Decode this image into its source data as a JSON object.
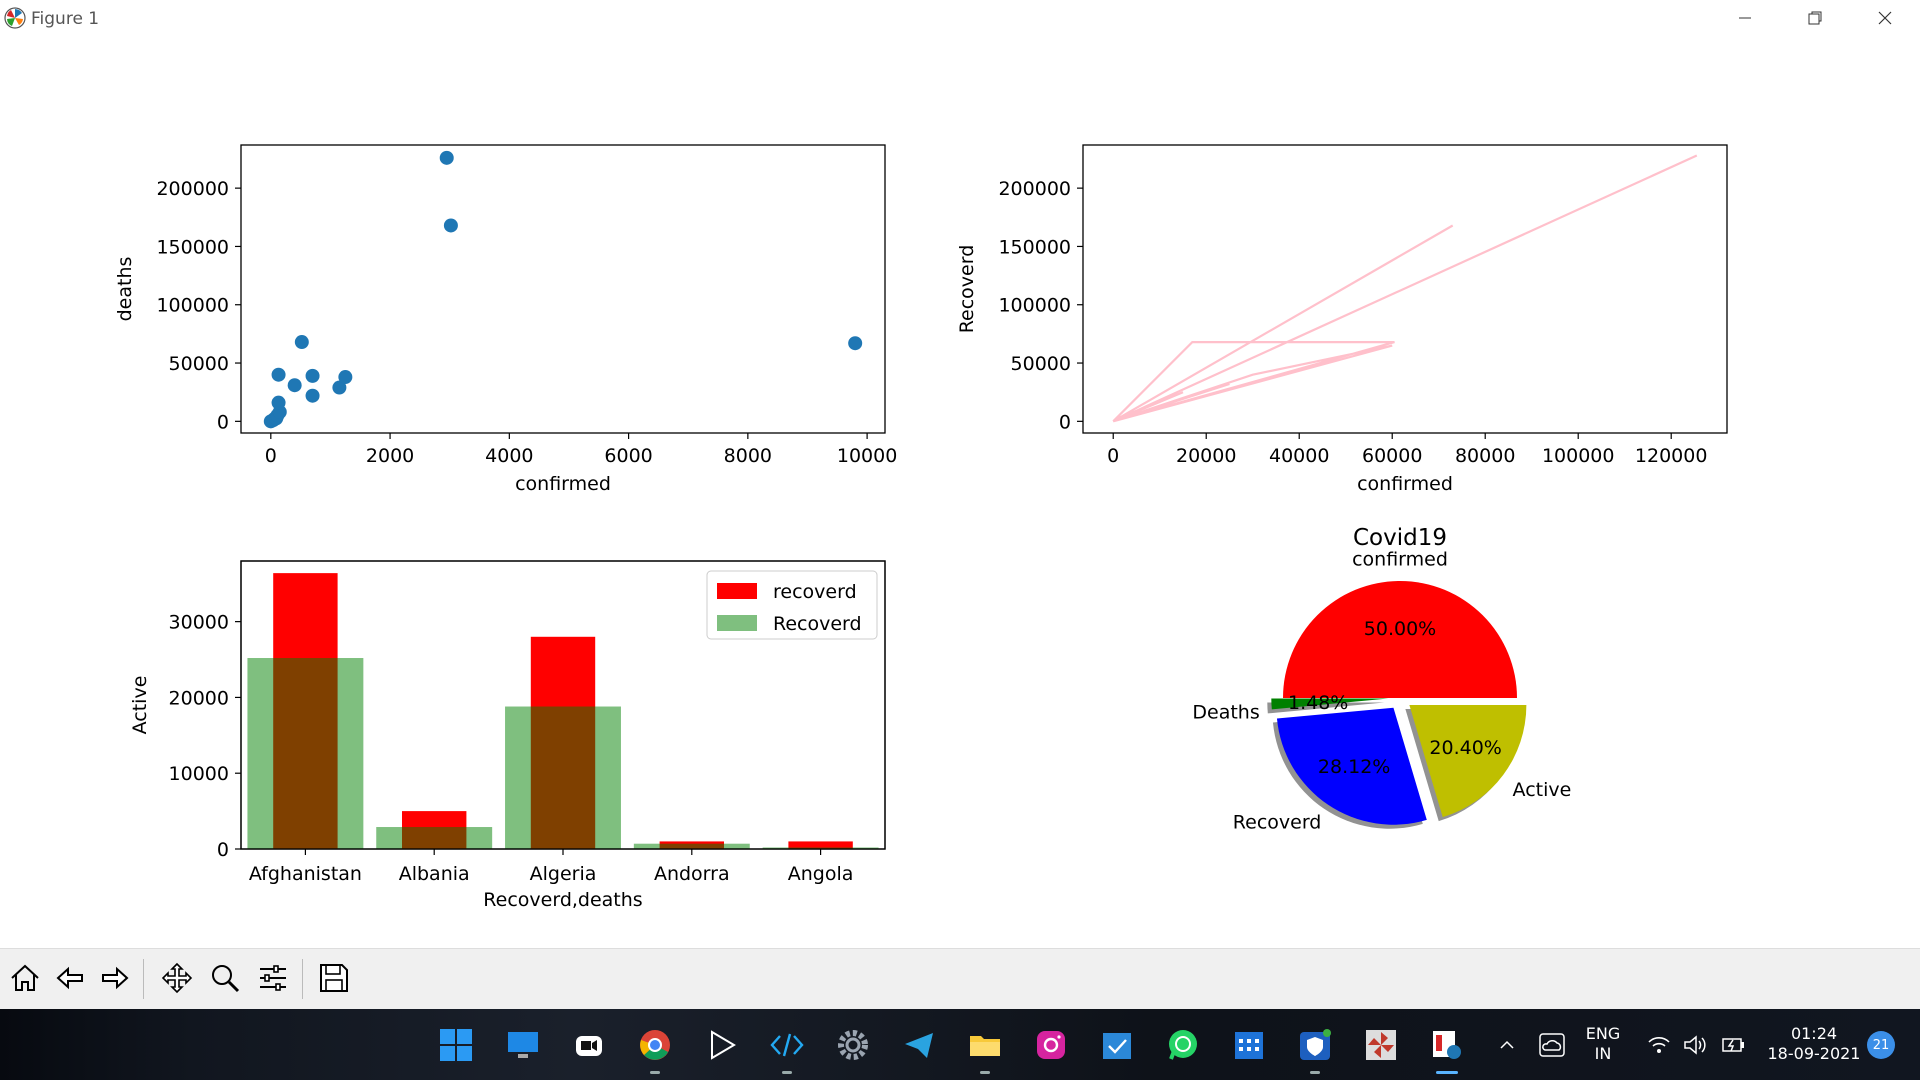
{
  "window": {
    "title": "Figure 1"
  },
  "chart_data": [
    {
      "type": "scatter",
      "xlabel": "confirmed",
      "ylabel": "deaths",
      "xticks": [
        "0",
        "2000",
        "4000",
        "6000",
        "8000",
        "10000"
      ],
      "yticks": [
        "0",
        "50000",
        "100000",
        "150000",
        "200000"
      ],
      "xlim": [
        -500,
        10300
      ],
      "ylim": [
        -10000,
        237000
      ],
      "color": "#1f77b4",
      "points": [
        [
          0,
          0
        ],
        [
          40,
          1000
        ],
        [
          60,
          2000
        ],
        [
          90,
          2500
        ],
        [
          110,
          5000
        ],
        [
          150,
          8000
        ],
        [
          130,
          16000
        ],
        [
          130,
          40000
        ],
        [
          400,
          31000
        ],
        [
          700,
          22000
        ],
        [
          700,
          39000
        ],
        [
          1150,
          29000
        ],
        [
          1250,
          38000
        ],
        [
          520,
          68000
        ],
        [
          2950,
          226000
        ],
        [
          3020,
          168000
        ],
        [
          9800,
          67000
        ]
      ]
    },
    {
      "type": "line",
      "xlabel": "confirmed",
      "ylabel": "Recoverd",
      "xticks": [
        "0",
        "20000",
        "40000",
        "60000",
        "80000",
        "100000",
        "120000"
      ],
      "yticks": [
        "0",
        "50000",
        "100000",
        "150000",
        "200000"
      ],
      "xlim": [
        -6500,
        132000
      ],
      "ylim": [
        -10000,
        237000
      ],
      "color": "pink",
      "points": [
        [
          0,
          0
        ],
        [
          17000,
          68000
        ],
        [
          60500,
          68000
        ],
        [
          0,
          0
        ],
        [
          73000,
          168000
        ],
        [
          0,
          0
        ],
        [
          25000,
          32000
        ],
        [
          0,
          0
        ],
        [
          125500,
          228000
        ],
        [
          0,
          0
        ],
        [
          15000,
          25000
        ],
        [
          0,
          0
        ],
        [
          60000,
          65000
        ],
        [
          30000,
          40000
        ],
        [
          0,
          0
        ]
      ]
    },
    {
      "type": "bar",
      "xlabel": "Recoverd,deaths",
      "ylabel": "Active",
      "categories": [
        "Afghanistan",
        "Albania",
        "Algeria",
        "Andorra",
        "Angola"
      ],
      "yticks": [
        "0",
        "10000",
        "20000",
        "30000"
      ],
      "ylim": [
        0,
        38000
      ],
      "legend": {
        "placement": "top-right"
      },
      "series": [
        {
          "name": "recoverd",
          "color": "#ff0000",
          "values": [
            36400,
            5000,
            28000,
            1000,
            1000
          ]
        },
        {
          "name": "Recoverd",
          "color": "#008000",
          "opacity": 0.5,
          "values": [
            25200,
            2900,
            18800,
            700,
            200
          ]
        }
      ]
    },
    {
      "type": "pie",
      "title": "Covid19",
      "slices": [
        {
          "label": "confirmed",
          "value": 50.0,
          "pct": "50.00%",
          "color": "#ff0000",
          "explode": 0.0
        },
        {
          "label": "Deaths",
          "value": 1.48,
          "pct": "1.48%",
          "color": "#008000",
          "explode": 0.1
        },
        {
          "label": "Recoverd",
          "value": 28.12,
          "pct": "28.12%",
          "color": "#0000ff",
          "explode": 0.1
        },
        {
          "label": "Active",
          "value": 20.4,
          "pct": "20.40%",
          "color": "#bfbf00",
          "explode": 0.1
        }
      ]
    }
  ],
  "toolbar": {
    "buttons": [
      {
        "name": "home-button",
        "icon": "home-icon"
      },
      {
        "name": "back-button",
        "icon": "arrow-left-icon"
      },
      {
        "name": "forward-button",
        "icon": "arrow-right-icon"
      },
      {
        "name": "pan-button",
        "icon": "move-icon"
      },
      {
        "name": "zoom-button",
        "icon": "magnifier-icon"
      },
      {
        "name": "configure-subplots-button",
        "icon": "sliders-icon"
      },
      {
        "name": "save-button",
        "icon": "floppy-disk-icon"
      }
    ]
  },
  "taskbar": {
    "language": "ENG",
    "region": "IN",
    "time": "01:24",
    "date": "18-09-2021",
    "notification_count": "21"
  }
}
